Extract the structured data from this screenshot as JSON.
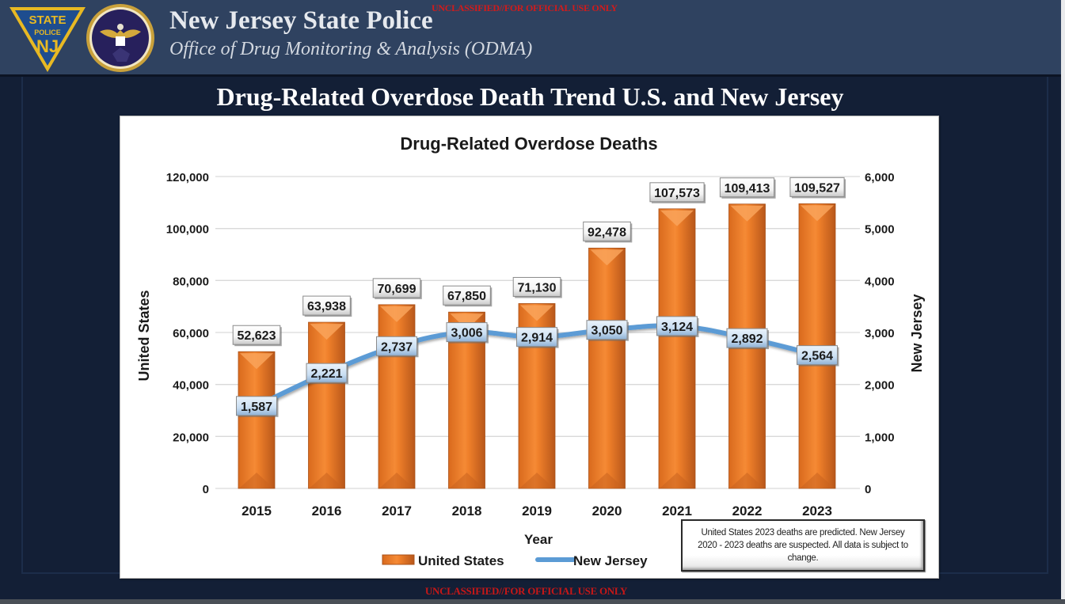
{
  "header": {
    "org_title": "New Jersey State Police",
    "org_subtitle": "Office of Drug Monitoring & Analysis (ODMA)",
    "classification_top": "UNCLASSIFIED//FOR OFFICIAL USE ONLY",
    "badge_text": [
      "STATE",
      "POLICE",
      "NJ"
    ],
    "colors": {
      "header_bg": "#2f4260",
      "page_bg": "#131f36",
      "badge_gold": "#e8b923",
      "badge_blue": "#1e4d8f",
      "classification_red": "#d21b1b"
    }
  },
  "slide": {
    "title": "Drug-Related Overdose Death Trend U.S. and New Jersey"
  },
  "footer": {
    "classification_bottom": "UNCLASSIFIED//FOR OFFICIAL USE ONLY"
  },
  "note": "United States 2023 deaths are predicted. New Jersey 2020 - 2023 deaths are suspected. All data is subject to change.",
  "chart_data": {
    "type": "bar",
    "title": "Drug-Related Overdose Deaths",
    "xlabel": "Year",
    "ylabel": "United States",
    "y2label": "New Jersey",
    "categories": [
      "2015",
      "2016",
      "2017",
      "2018",
      "2019",
      "2020",
      "2021",
      "2022",
      "2023"
    ],
    "ylim": [
      0,
      120000
    ],
    "y2lim": [
      0,
      6000
    ],
    "yticks": [
      0,
      20000,
      40000,
      60000,
      80000,
      100000,
      120000
    ],
    "ytick_labels": [
      "0",
      "20,000",
      "40,000",
      "60,000",
      "80,000",
      "100,000",
      "120,000"
    ],
    "y2ticks": [
      0,
      1000,
      2000,
      3000,
      4000,
      5000,
      6000
    ],
    "y2tick_labels": [
      "0",
      "1,000",
      "2,000",
      "3,000",
      "4,000",
      "5,000",
      "6,000"
    ],
    "grid": true,
    "legend_position": "bottom-center",
    "series": [
      {
        "name": "United States",
        "type": "bar",
        "axis": "left",
        "color": "#f0862f",
        "values": [
          52623,
          63938,
          70699,
          67850,
          71130,
          92478,
          107573,
          109413,
          109527
        ],
        "labels": [
          "52,623",
          "63,938",
          "70,699",
          "67,850",
          "71,130",
          "92,478",
          "107,573",
          "109,413",
          "109,527"
        ]
      },
      {
        "name": "New Jersey",
        "type": "line",
        "axis": "right",
        "color": "#5b9bd5",
        "values": [
          1587,
          2221,
          2737,
          3006,
          2914,
          3050,
          3124,
          2892,
          2564
        ],
        "labels": [
          "1,587",
          "2,221",
          "2,737",
          "3,006",
          "2,914",
          "3,050",
          "3,124",
          "2,892",
          "2,564"
        ]
      }
    ]
  }
}
